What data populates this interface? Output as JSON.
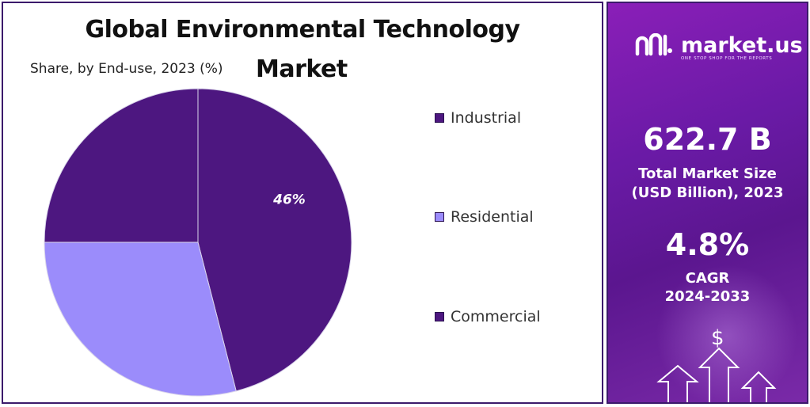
{
  "chart_data": {
    "type": "pie",
    "title": "Global Environmental Technology Market",
    "subtitle": "Share, by End-use, 2023 (%)",
    "categories": [
      "Industrial",
      "Residential",
      "Commercial"
    ],
    "values": [
      46,
      29,
      25
    ],
    "data_labels": [
      "46%",
      "",
      ""
    ],
    "colors": [
      "#4d1780",
      "#9b8cfb",
      "#4d1780"
    ],
    "legend_position": "right"
  },
  "title_line1": "Global Environmental Technology",
  "title_line2": "Market",
  "subtitle": "Share, by End-use, 2023 (%)",
  "legend": [
    {
      "label": "Industrial",
      "color": "#4d1780"
    },
    {
      "label": "Residential",
      "color": "#9b8cfb"
    },
    {
      "label": "Commercial",
      "color": "#4d1780"
    }
  ],
  "brand": {
    "name": "market.us",
    "tagline": "ONE STOP SHOP FOR THE REPORTS",
    "logo_icon": "market-us-logo-icon"
  },
  "stats": {
    "market_size_value": "622.7 B",
    "market_size_label_line1": "Total Market Size",
    "market_size_label_line2": "(USD Billion), 2023",
    "cagr_value": "4.8%",
    "cagr_label_line1": "CAGR",
    "cagr_label_line2": "2024-2033"
  },
  "icons": {
    "dollar": "$"
  }
}
